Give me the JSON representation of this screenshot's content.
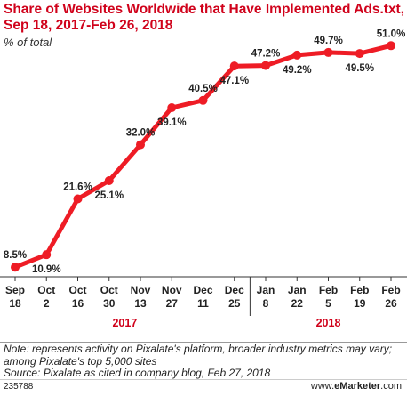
{
  "title": "Share of Websites Worldwide that Have Implemented Ads.txt, Sep 18, 2017-Feb 26, 2018",
  "subtitle": "% of total",
  "notes": [
    "Note: represents activity on Pixalate's platform, broader industry metrics may vary; among Pixalate's top 5,000 sites",
    "Source: Pixalate as cited in company blog, Feb 27, 2018"
  ],
  "footer": {
    "id": "235788",
    "brand_prefix": "www.",
    "brand_name": "eMarketer",
    "brand_suffix": ".com"
  },
  "colors": {
    "line": "#ee1c25",
    "title": "#d0021b"
  },
  "chart_data": {
    "type": "line",
    "categories": [
      [
        "Sep",
        "18"
      ],
      [
        "Oct",
        "2"
      ],
      [
        "Oct",
        "16"
      ],
      [
        "Oct",
        "30"
      ],
      [
        "Nov",
        "13"
      ],
      [
        "Nov",
        "27"
      ],
      [
        "Dec",
        "11"
      ],
      [
        "Dec",
        "25"
      ],
      [
        "Jan",
        "8"
      ],
      [
        "Jan",
        "22"
      ],
      [
        "Feb",
        "5"
      ],
      [
        "Feb",
        "19"
      ],
      [
        "Feb",
        "26"
      ]
    ],
    "year_groups": [
      {
        "label": "2017",
        "start": 0,
        "end": 7
      },
      {
        "label": "2018",
        "start": 8,
        "end": 12
      }
    ],
    "values": [
      8.5,
      10.9,
      21.6,
      25.1,
      32.0,
      39.1,
      40.5,
      47.1,
      47.2,
      49.2,
      49.7,
      49.5,
      51.0
    ],
    "data_labels": [
      "8.5%",
      "10.9%",
      "21.6%",
      "25.1%",
      "32.0%",
      "39.1%",
      "40.5%",
      "47.1%",
      "47.2%",
      "49.2%",
      "49.7%",
      "49.5%",
      "51.0%"
    ],
    "label_position": [
      "above",
      "below",
      "above",
      "below",
      "above",
      "below",
      "above",
      "below",
      "above",
      "below",
      "above",
      "below",
      "above"
    ],
    "ylim": [
      0,
      60
    ],
    "grid": false,
    "legend": "none"
  }
}
